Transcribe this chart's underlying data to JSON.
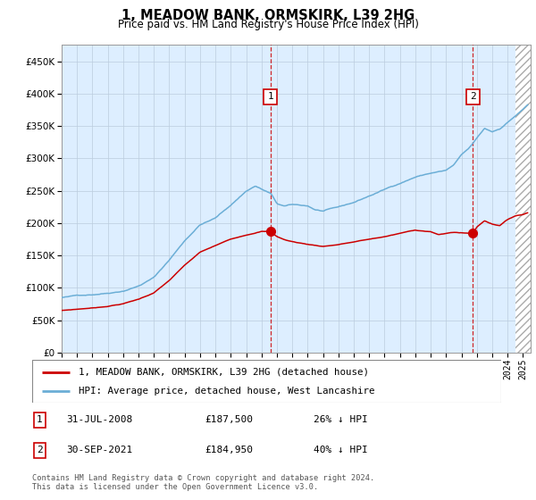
{
  "title": "1, MEADOW BANK, ORMSKIRK, L39 2HG",
  "subtitle": "Price paid vs. HM Land Registry's House Price Index (HPI)",
  "legend_line1": "1, MEADOW BANK, ORMSKIRK, L39 2HG (detached house)",
  "legend_line2": "HPI: Average price, detached house, West Lancashire",
  "marker1_date": "31-JUL-2008",
  "marker1_price": "£187,500",
  "marker1_hpi": "26% ↓ HPI",
  "marker1_x": 2008.58,
  "marker1_y": 187500,
  "marker2_date": "30-SEP-2021",
  "marker2_price": "£184,950",
  "marker2_hpi": "40% ↓ HPI",
  "marker2_x": 2021.75,
  "marker2_y": 184950,
  "hpi_color": "#6baed6",
  "price_color": "#cc0000",
  "background_color": "#ddeeff",
  "grid_color": "#bbccdd",
  "footnote": "Contains HM Land Registry data © Crown copyright and database right 2024.\nThis data is licensed under the Open Government Licence v3.0.",
  "ylim": [
    0,
    475000
  ],
  "xlim_start": 1995.0,
  "xlim_end": 2025.5,
  "hatch_start": 2024.5
}
